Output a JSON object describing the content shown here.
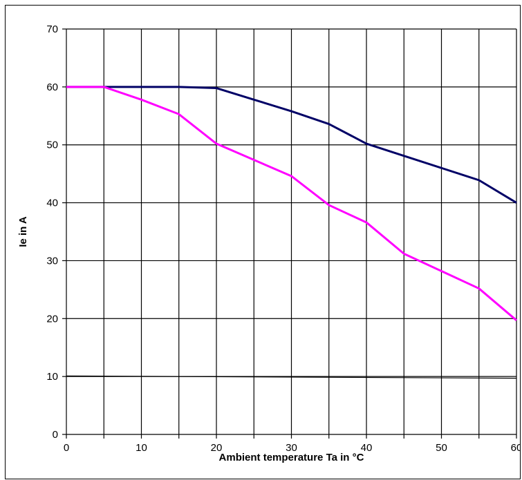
{
  "chart_data": {
    "type": "line",
    "title": "",
    "xlabel": "Ambient temperature Ta in °C",
    "ylabel": "Ie in A",
    "xlim": [
      0,
      60
    ],
    "ylim": [
      0,
      70
    ],
    "xticks": [
      0,
      10,
      20,
      30,
      40,
      50,
      60
    ],
    "yticks": [
      0,
      10,
      20,
      30,
      40,
      50,
      60,
      70
    ],
    "x_tick_labels": [
      "0",
      "10",
      "20",
      "30",
      "40",
      "50",
      "60"
    ],
    "y_tick_labels": [
      "0",
      "10",
      "20",
      "30",
      "40",
      "50",
      "60",
      "70"
    ],
    "vertical_grid_step": 5,
    "grid": true,
    "legend": "none",
    "series": [
      {
        "color": "#000066",
        "x": [
          0,
          5,
          10,
          15,
          20,
          25,
          30,
          35,
          40,
          45,
          50,
          55,
          60
        ],
        "y": [
          60,
          60,
          60,
          60,
          59.8,
          57.8,
          55.8,
          53.6,
          50.2,
          48.1,
          46,
          43.9,
          40
        ]
      },
      {
        "color": "#ff00ff",
        "x": [
          0,
          5,
          10,
          15,
          20,
          25,
          30,
          35,
          40,
          45,
          50,
          55,
          60
        ],
        "y": [
          60,
          60,
          57.8,
          55.3,
          50.2,
          47.4,
          44.6,
          39.6,
          36.6,
          31.2,
          28.2,
          25.2,
          19.7
        ]
      }
    ],
    "reference_line": {
      "color": "#000000",
      "x": [
        0,
        60
      ],
      "y": [
        10.1,
        9.7
      ]
    }
  }
}
